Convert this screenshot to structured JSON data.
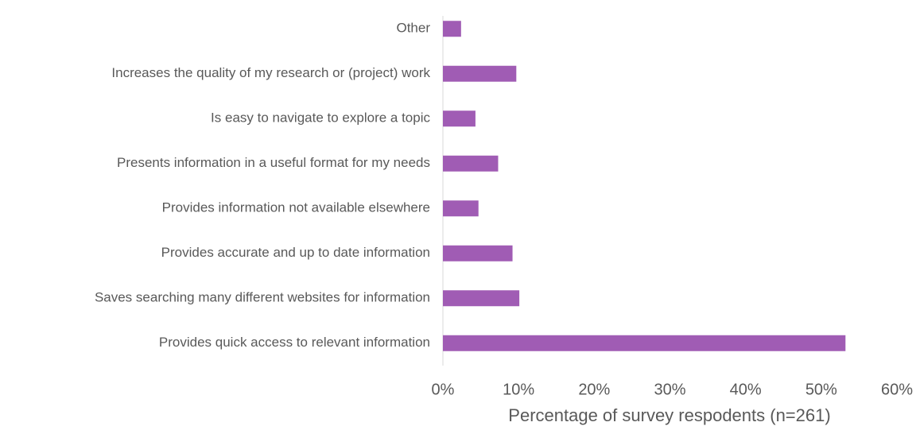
{
  "chart_data": {
    "type": "hbar",
    "categories": [
      "Other",
      "Increases the quality of my research or (project) work",
      "Is easy to navigate to explore a topic",
      "Presents information in a useful format for my needs",
      "Provides information not available elsewhere",
      "Provides accurate and up to date information",
      "Saves searching many different websites for information",
      "Provides quick access to relevant information"
    ],
    "values": [
      2.4,
      9.7,
      4.3,
      7.3,
      4.7,
      9.2,
      10.1,
      53.2
    ],
    "color": "#a05cb4",
    "x_label": "Percentage of survey respodents (n=261)",
    "xlim": [
      0,
      60
    ],
    "xticks": [
      {
        "value": 0,
        "label": "0%"
      },
      {
        "value": 10,
        "label": "10%"
      },
      {
        "value": 20,
        "label": "20%"
      },
      {
        "value": 30,
        "label": "30%"
      },
      {
        "value": 40,
        "label": "40%"
      },
      {
        "value": 50,
        "label": "50%"
      },
      {
        "value": 60,
        "label": "60%"
      }
    ],
    "grid": false
  }
}
